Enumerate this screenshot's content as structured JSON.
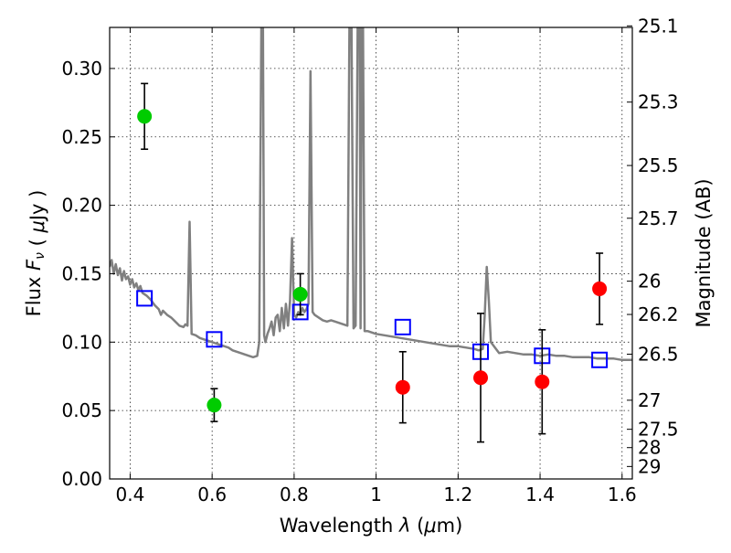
{
  "chart_data": {
    "type": "scatter",
    "title": "",
    "xlabel": "Wavelength  λ (μm)",
    "ylabel": "Flux  Fν  ( μJy )",
    "y2label": "Magnitude (AB)",
    "xlim": [
      0.35,
      1.625
    ],
    "ylim": [
      0.0,
      0.33
    ],
    "grid": true,
    "legend": "none",
    "x_ticks": [
      {
        "value": 0.4,
        "label": "0.4"
      },
      {
        "value": 0.6,
        "label": "0.6"
      },
      {
        "value": 0.8,
        "label": "0.8"
      },
      {
        "value": 1.0,
        "label": "1"
      },
      {
        "value": 1.2,
        "label": "1.2"
      },
      {
        "value": 1.4,
        "label": "1.4"
      },
      {
        "value": 1.6,
        "label": "1.6"
      }
    ],
    "y_ticks": [
      {
        "value": 0.0,
        "label": "0.00"
      },
      {
        "value": 0.05,
        "label": "0.05"
      },
      {
        "value": 0.1,
        "label": "0.10"
      },
      {
        "value": 0.15,
        "label": "0.15"
      },
      {
        "value": 0.2,
        "label": "0.20"
      },
      {
        "value": 0.25,
        "label": "0.25"
      },
      {
        "value": 0.3,
        "label": "0.30"
      }
    ],
    "y2_ticks": [
      {
        "value": 25.1,
        "label": "25.1"
      },
      {
        "value": 25.3,
        "label": "25.3"
      },
      {
        "value": 25.5,
        "label": "25.5"
      },
      {
        "value": 25.7,
        "label": "25.7"
      },
      {
        "value": 26.0,
        "label": "26"
      },
      {
        "value": 26.2,
        "label": "26.2"
      },
      {
        "value": 26.5,
        "label": "26.5"
      },
      {
        "value": 27.0,
        "label": "27"
      },
      {
        "value": 27.5,
        "label": "27.5"
      },
      {
        "value": 28.0,
        "label": "28"
      },
      {
        "value": 29.0,
        "label": "29"
      }
    ],
    "series": [
      {
        "kind": "line",
        "color": "#808080",
        "points": [
          [
            0.35,
            0.155
          ],
          [
            0.355,
            0.16
          ],
          [
            0.36,
            0.15
          ],
          [
            0.365,
            0.157
          ],
          [
            0.37,
            0.149
          ],
          [
            0.375,
            0.154
          ],
          [
            0.38,
            0.145
          ],
          [
            0.385,
            0.152
          ],
          [
            0.39,
            0.146
          ],
          [
            0.395,
            0.148
          ],
          [
            0.4,
            0.142
          ],
          [
            0.405,
            0.146
          ],
          [
            0.41,
            0.14
          ],
          [
            0.415,
            0.143
          ],
          [
            0.42,
            0.138
          ],
          [
            0.425,
            0.141
          ],
          [
            0.43,
            0.136
          ],
          [
            0.44,
            0.134
          ],
          [
            0.45,
            0.131
          ],
          [
            0.46,
            0.127
          ],
          [
            0.47,
            0.124
          ],
          [
            0.475,
            0.12
          ],
          [
            0.48,
            0.123
          ],
          [
            0.49,
            0.12
          ],
          [
            0.5,
            0.118
          ],
          [
            0.51,
            0.115
          ],
          [
            0.52,
            0.112
          ],
          [
            0.53,
            0.111
          ],
          [
            0.535,
            0.113
          ],
          [
            0.54,
            0.112
          ],
          [
            0.545,
            0.188
          ],
          [
            0.55,
            0.106
          ],
          [
            0.56,
            0.105
          ],
          [
            0.57,
            0.103
          ],
          [
            0.58,
            0.102
          ],
          [
            0.59,
            0.101
          ],
          [
            0.6,
            0.1
          ],
          [
            0.61,
            0.099
          ],
          [
            0.62,
            0.098
          ],
          [
            0.63,
            0.097
          ],
          [
            0.64,
            0.096
          ],
          [
            0.65,
            0.094
          ],
          [
            0.66,
            0.093
          ],
          [
            0.67,
            0.092
          ],
          [
            0.68,
            0.091
          ],
          [
            0.69,
            0.09
          ],
          [
            0.7,
            0.089
          ],
          [
            0.71,
            0.09
          ],
          [
            0.715,
            0.1
          ],
          [
            0.72,
            0.33
          ],
          [
            0.724,
            0.33
          ],
          [
            0.727,
            0.105
          ],
          [
            0.73,
            0.1
          ],
          [
            0.735,
            0.106
          ],
          [
            0.74,
            0.11
          ],
          [
            0.745,
            0.115
          ],
          [
            0.75,
            0.105
          ],
          [
            0.755,
            0.118
          ],
          [
            0.76,
            0.12
          ],
          [
            0.765,
            0.108
          ],
          [
            0.77,
            0.125
          ],
          [
            0.775,
            0.11
          ],
          [
            0.78,
            0.128
          ],
          [
            0.785,
            0.112
          ],
          [
            0.79,
            0.13
          ],
          [
            0.795,
            0.176
          ],
          [
            0.8,
            0.12
          ],
          [
            0.805,
            0.118
          ],
          [
            0.81,
            0.122
          ],
          [
            0.815,
            0.12
          ],
          [
            0.82,
            0.125
          ],
          [
            0.825,
            0.122
          ],
          [
            0.83,
            0.124
          ],
          [
            0.835,
            0.128
          ],
          [
            0.84,
            0.298
          ],
          [
            0.845,
            0.122
          ],
          [
            0.85,
            0.12
          ],
          [
            0.86,
            0.118
          ],
          [
            0.87,
            0.116
          ],
          [
            0.88,
            0.115
          ],
          [
            0.89,
            0.116
          ],
          [
            0.9,
            0.115
          ],
          [
            0.91,
            0.114
          ],
          [
            0.92,
            0.113
          ],
          [
            0.93,
            0.112
          ],
          [
            0.935,
            0.33
          ],
          [
            0.94,
            0.33
          ],
          [
            0.945,
            0.11
          ],
          [
            0.95,
            0.112
          ],
          [
            0.955,
            0.33
          ],
          [
            0.96,
            0.33
          ],
          [
            0.962,
            0.11
          ],
          [
            0.965,
            0.33
          ],
          [
            0.968,
            0.33
          ],
          [
            0.972,
            0.108
          ],
          [
            0.98,
            0.108
          ],
          [
            0.99,
            0.107
          ],
          [
            1.0,
            0.106
          ],
          [
            1.02,
            0.105
          ],
          [
            1.04,
            0.104
          ],
          [
            1.06,
            0.103
          ],
          [
            1.08,
            0.102
          ],
          [
            1.1,
            0.101
          ],
          [
            1.12,
            0.1
          ],
          [
            1.14,
            0.099
          ],
          [
            1.16,
            0.098
          ],
          [
            1.18,
            0.097
          ],
          [
            1.2,
            0.097
          ],
          [
            1.22,
            0.096
          ],
          [
            1.24,
            0.095
          ],
          [
            1.25,
            0.094
          ],
          [
            1.26,
            0.095
          ],
          [
            1.265,
            0.12
          ],
          [
            1.27,
            0.155
          ],
          [
            1.275,
            0.13
          ],
          [
            1.28,
            0.1
          ],
          [
            1.3,
            0.092
          ],
          [
            1.32,
            0.093
          ],
          [
            1.34,
            0.092
          ],
          [
            1.36,
            0.091
          ],
          [
            1.38,
            0.091
          ],
          [
            1.4,
            0.09
          ],
          [
            1.42,
            0.091
          ],
          [
            1.44,
            0.09
          ],
          [
            1.46,
            0.09
          ],
          [
            1.48,
            0.089
          ],
          [
            1.5,
            0.089
          ],
          [
            1.52,
            0.089
          ],
          [
            1.54,
            0.088
          ],
          [
            1.56,
            0.088
          ],
          [
            1.58,
            0.088
          ],
          [
            1.6,
            0.087
          ],
          [
            1.625,
            0.087
          ]
        ]
      },
      {
        "kind": "markers",
        "marker": "square",
        "color": "#0000ff",
        "x": [
          0.435,
          0.605,
          0.815,
          1.065,
          1.255,
          1.405,
          1.545
        ],
        "y": [
          0.132,
          0.102,
          0.122,
          0.111,
          0.093,
          0.09,
          0.087
        ]
      },
      {
        "kind": "markers",
        "marker": "circle",
        "color": "#00cc00",
        "x": [
          0.435,
          0.605,
          0.815
        ],
        "y": [
          0.265,
          0.054,
          0.135
        ],
        "yerr": [
          0.024,
          0.012,
          0.015
        ]
      },
      {
        "kind": "markers",
        "marker": "circle",
        "color": "#ff0000",
        "x": [
          1.065,
          1.255,
          1.405,
          1.545
        ],
        "y": [
          0.067,
          0.074,
          0.071,
          0.139
        ],
        "yerr": [
          0.026,
          0.047,
          0.038,
          0.026
        ]
      }
    ]
  }
}
